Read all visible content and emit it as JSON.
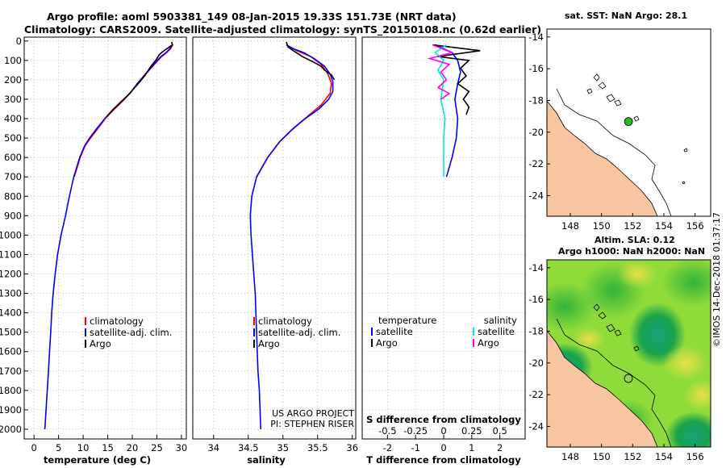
{
  "header": {
    "line1": "Argo profile: aoml 5903381_149 08-Jan-2015 19.33S 151.73E (NRT data)",
    "line2": "Climatology: CARS2009. Satellite-adjusted climatology: synTS_20150108.nc (0.62d earlier)"
  },
  "stamp": "©IMOS 14-Dec-2018 01:37:17",
  "colors": {
    "climatology": "#ff0000",
    "satellite": "#0000ff",
    "argo": "#000000",
    "sat_salinity": "#00e5e5",
    "argo_salinity": "#ff00ff",
    "land": "#f7c59f",
    "sst_dot": "#22bb22"
  },
  "chart_data": [
    {
      "type": "line",
      "panel": "temperature",
      "xlabel": "temperature (deg C)",
      "xlim": [
        -2,
        31
      ],
      "ylim": [
        2050,
        0
      ],
      "x_ticks": [
        0,
        5,
        10,
        15,
        20,
        25,
        30
      ],
      "y_ticks": [
        0,
        100,
        200,
        300,
        400,
        500,
        600,
        700,
        800,
        900,
        1000,
        1100,
        1200,
        1300,
        1400,
        1500,
        1600,
        1700,
        1800,
        1900,
        2000
      ],
      "legend": [
        "climatology",
        "satellite-adj. clim.",
        "Argo"
      ],
      "series": [
        {
          "name": "climatology",
          "color": "#ff0000",
          "points": [
            [
              28.2,
              20
            ],
            [
              27.8,
              40
            ],
            [
              27,
              60
            ],
            [
              26,
              80
            ],
            [
              24.5,
              120
            ],
            [
              22.5,
              175
            ],
            [
              21,
              220
            ],
            [
              19.5,
              270
            ],
            [
              18,
              310
            ],
            [
              16,
              360
            ],
            [
              14.5,
              400
            ],
            [
              13,
              450
            ],
            [
              11.5,
              500
            ],
            [
              10.4,
              540
            ],
            [
              9.4,
              600
            ],
            [
              8.2,
              700
            ]
          ]
        },
        {
          "name": "satellite-adj. clim.",
          "color": "#0000ff",
          "points": [
            [
              28.2,
              20
            ],
            [
              27.6,
              40
            ],
            [
              26.9,
              60
            ],
            [
              25.8,
              80
            ],
            [
              24.4,
              120
            ],
            [
              22.6,
              175
            ],
            [
              21,
              220
            ],
            [
              19.5,
              270
            ],
            [
              17.8,
              310
            ],
            [
              15.8,
              360
            ],
            [
              14.4,
              400
            ],
            [
              12.8,
              450
            ],
            [
              11.3,
              500
            ],
            [
              10.3,
              540
            ],
            [
              9.3,
              600
            ],
            [
              8.1,
              700
            ],
            [
              7.2,
              800
            ],
            [
              6.4,
              900
            ],
            [
              5.5,
              1000
            ],
            [
              4.8,
              1100
            ],
            [
              4.3,
              1200
            ],
            [
              3.9,
              1300
            ],
            [
              3.6,
              1400
            ],
            [
              3.4,
              1500
            ],
            [
              3.15,
              1600
            ],
            [
              2.95,
              1700
            ],
            [
              2.7,
              1800
            ],
            [
              2.45,
              1900
            ],
            [
              2.2,
              2000
            ]
          ]
        },
        {
          "name": "Argo",
          "color": "#000000",
          "points": [
            [
              28.0,
              5
            ],
            [
              28.2,
              20
            ],
            [
              27.3,
              35
            ],
            [
              26.2,
              55
            ],
            [
              25.5,
              70
            ],
            [
              24.9,
              95
            ],
            [
              23.8,
              130
            ],
            [
              22.5,
              180
            ],
            [
              21.2,
              220
            ],
            [
              19.8,
              260
            ],
            [
              18.7,
              290
            ],
            [
              17.5,
              320
            ],
            [
              16.2,
              350
            ],
            [
              14.8,
              390
            ]
          ]
        }
      ]
    },
    {
      "type": "line",
      "panel": "salinity",
      "xlabel": "salinity",
      "xlim": [
        33.7,
        36.05
      ],
      "ylim": [
        2050,
        0
      ],
      "x_ticks": [
        34,
        34.5,
        35,
        35.5,
        36
      ],
      "legend": [
        "climatology",
        "satellite-adj. clim.",
        "Argo"
      ],
      "annotation": [
        "US ARGO PROJECT",
        "PI: STEPHEN RISER"
      ],
      "series": [
        {
          "name": "climatology",
          "color": "#ff0000",
          "points": [
            [
              35.05,
              20
            ],
            [
              35.2,
              50
            ],
            [
              35.4,
              80
            ],
            [
              35.55,
              120
            ],
            [
              35.65,
              170
            ],
            [
              35.7,
              220
            ],
            [
              35.68,
              270
            ],
            [
              35.55,
              330
            ],
            [
              35.35,
              390
            ],
            [
              35.15,
              450
            ],
            [
              34.95,
              520
            ],
            [
              34.78,
              600
            ],
            [
              34.62,
              700
            ]
          ]
        },
        {
          "name": "satellite-adj. clim.",
          "color": "#0000ff",
          "points": [
            [
              35.05,
              20
            ],
            [
              35.15,
              40
            ],
            [
              35.3,
              60
            ],
            [
              35.45,
              90
            ],
            [
              35.6,
              130
            ],
            [
              35.68,
              170
            ],
            [
              35.72,
              210
            ],
            [
              35.72,
              260
            ],
            [
              35.66,
              300
            ],
            [
              35.52,
              350
            ],
            [
              35.32,
              400
            ],
            [
              35.12,
              460
            ],
            [
              34.95,
              520
            ],
            [
              34.78,
              600
            ],
            [
              34.62,
              700
            ],
            [
              34.55,
              800
            ],
            [
              34.53,
              900
            ],
            [
              34.54,
              1000
            ],
            [
              34.56,
              1100
            ],
            [
              34.58,
              1200
            ],
            [
              34.6,
              1300
            ],
            [
              34.61,
              1400
            ],
            [
              34.62,
              1500
            ],
            [
              34.63,
              1600
            ],
            [
              34.64,
              1700
            ],
            [
              34.66,
              1800
            ],
            [
              34.67,
              1900
            ],
            [
              34.68,
              2000
            ]
          ]
        },
        {
          "name": "Argo",
          "color": "#000000",
          "points": [
            [
              35.05,
              5
            ],
            [
              35.07,
              30
            ],
            [
              35.15,
              50
            ],
            [
              35.28,
              80
            ],
            [
              35.45,
              110
            ],
            [
              35.55,
              130
            ],
            [
              35.6,
              150
            ],
            [
              35.7,
              175
            ],
            [
              35.74,
              200
            ]
          ]
        }
      ]
    },
    {
      "type": "line",
      "panel": "difference",
      "xlabel": "T difference from climatology",
      "xlabel_top": "S difference from climatology",
      "xlim": [
        -2.9,
        2.9
      ],
      "x_ticks": [
        -2,
        -1,
        0,
        1,
        2
      ],
      "s_ticks": [
        "-0.5",
        "-0.25",
        "0",
        "0.25",
        "0.5"
      ],
      "s_tick_positions": [
        -2,
        -1,
        0,
        1,
        2
      ],
      "legend_titles": [
        "temperature",
        "salinity"
      ],
      "legend_left": [
        "satellite",
        "Argo"
      ],
      "legend_right": [
        "satellite",
        "Argo"
      ],
      "series": [
        {
          "name": "T satellite",
          "color": "#0000ff",
          "points": [
            [
              -0.3,
              20
            ],
            [
              0.3,
              60
            ],
            [
              0.5,
              100
            ],
            [
              0.6,
              160
            ],
            [
              0.5,
              220
            ],
            [
              0.4,
              300
            ],
            [
              0.5,
              400
            ],
            [
              0.45,
              500
            ],
            [
              0.3,
              600
            ],
            [
              0.1,
              700
            ]
          ]
        },
        {
          "name": "T Argo",
          "color": "#000000",
          "points": [
            [
              -0.4,
              20
            ],
            [
              1.3,
              50
            ],
            [
              -0.2,
              80
            ],
            [
              0.9,
              100
            ],
            [
              0.6,
              140
            ],
            [
              0.8,
              180
            ],
            [
              0.5,
              220
            ],
            [
              0.9,
              260
            ],
            [
              0.7,
              300
            ],
            [
              0.9,
              340
            ],
            [
              0.8,
              380
            ]
          ]
        },
        {
          "name": "S satellite",
          "color": "#00e5e5",
          "points": [
            [
              0.1,
              20
            ],
            [
              -0.3,
              60
            ],
            [
              0.0,
              100
            ],
            [
              -0.2,
              150
            ],
            [
              0.0,
              200
            ],
            [
              -0.1,
              300
            ],
            [
              0.05,
              400
            ],
            [
              0.0,
              500
            ],
            [
              0.0,
              600
            ],
            [
              0.0,
              700
            ]
          ]
        },
        {
          "name": "S Argo",
          "color": "#ff00ff",
          "points": [
            [
              -0.4,
              20
            ],
            [
              0.3,
              60
            ],
            [
              -0.5,
              90
            ],
            [
              0.2,
              120
            ],
            [
              -0.1,
              160
            ],
            [
              0.1,
              200
            ],
            [
              -0.2,
              240
            ],
            [
              0.2,
              270
            ],
            [
              -0.1,
              300
            ]
          ]
        }
      ]
    }
  ],
  "maps": {
    "top": {
      "title": "sat. SST: NaN Argo: 28.1",
      "x_ticks": [
        "148",
        "150",
        "152",
        "154",
        "156"
      ],
      "y_ticks": [
        "-14",
        "-16",
        "-18",
        "-20",
        "-22",
        "-24"
      ],
      "lon_range": [
        146.5,
        157
      ],
      "lat_range": [
        -25.3,
        -13.5
      ],
      "argo_position": [
        151.73,
        -19.33
      ]
    },
    "bottom": {
      "title_line1": "Altim. SLA: 0.12",
      "title_line2": "Argo h1000: NaN h2000: NaN",
      "x_ticks": [
        "148",
        "150",
        "152",
        "154",
        "156"
      ],
      "y_ticks": [
        "-14",
        "-16",
        "-18",
        "-20",
        "-22",
        "-24"
      ]
    }
  }
}
